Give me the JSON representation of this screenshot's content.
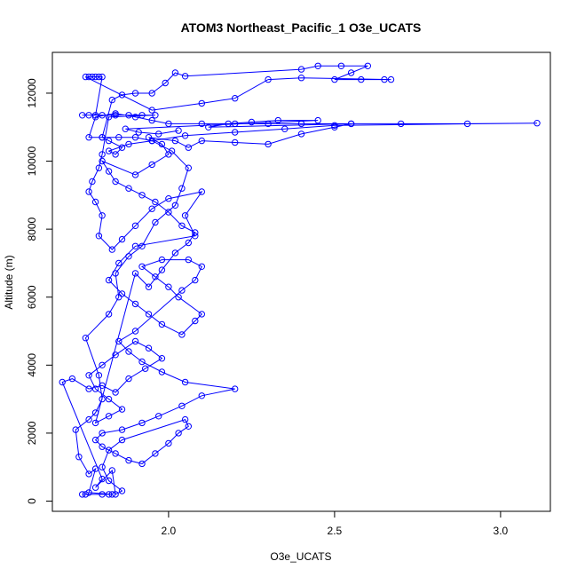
{
  "chart_data": {
    "type": "scatter",
    "title": "ATOM3 Northeast_Pacific_1 O3e_UCATS",
    "xlabel": "O3e_UCATS",
    "ylabel": "Altitude (m)",
    "xlim": [
      1.65,
      3.15
    ],
    "ylim": [
      -300,
      13200
    ],
    "x_ticks": [
      {
        "value": 2.0,
        "label": "2.0"
      },
      {
        "value": 2.5,
        "label": "2.5"
      },
      {
        "value": 3.0,
        "label": "3.0"
      }
    ],
    "y_ticks": [
      {
        "value": 0,
        "label": "0"
      },
      {
        "value": 2000,
        "label": "2000"
      },
      {
        "value": 4000,
        "label": "4000"
      },
      {
        "value": 6000,
        "label": "6000"
      },
      {
        "value": 8000,
        "label": "8000"
      },
      {
        "value": 10000,
        "label": "10000"
      },
      {
        "value": 12000,
        "label": "12000"
      }
    ],
    "grid": false,
    "series_color": "#0000ff",
    "series": [
      {
        "marker": "open-circle",
        "line": true,
        "points": [
          [
            1.74,
            200
          ],
          [
            1.75,
            200
          ],
          [
            1.8,
            200
          ],
          [
            1.82,
            200
          ],
          [
            1.83,
            200
          ],
          [
            1.76,
            250
          ],
          [
            1.78,
            950
          ],
          [
            1.76,
            800
          ],
          [
            1.73,
            1300
          ],
          [
            1.72,
            2100
          ],
          [
            1.76,
            2400
          ],
          [
            1.78,
            2600
          ],
          [
            1.8,
            3000
          ],
          [
            1.79,
            3700
          ],
          [
            1.75,
            4800
          ],
          [
            1.82,
            5500
          ],
          [
            1.85,
            6000
          ],
          [
            1.84,
            6700
          ],
          [
            1.88,
            7200
          ],
          [
            1.92,
            7500
          ],
          [
            1.96,
            8200
          ],
          [
            2.02,
            8700
          ],
          [
            2.04,
            9200
          ],
          [
            2.06,
            9800
          ],
          [
            2.01,
            10300
          ],
          [
            1.95,
            10600
          ],
          [
            1.9,
            10700
          ],
          [
            1.85,
            10700
          ],
          [
            1.8,
            10700
          ],
          [
            1.76,
            10700
          ],
          [
            1.78,
            11300
          ],
          [
            1.84,
            11400
          ],
          [
            1.9,
            11300
          ],
          [
            1.95,
            11200
          ],
          [
            2.0,
            11100
          ],
          [
            2.1,
            11100
          ],
          [
            2.2,
            11100
          ],
          [
            2.3,
            11100
          ],
          [
            2.4,
            11100
          ],
          [
            2.55,
            11100
          ],
          [
            2.7,
            11100
          ],
          [
            2.9,
            11100
          ],
          [
            3.11,
            11120
          ],
          [
            2.5,
            11050
          ],
          [
            2.35,
            10950
          ],
          [
            2.2,
            10850
          ],
          [
            2.05,
            10750
          ],
          [
            1.95,
            10600
          ],
          [
            1.88,
            10500
          ],
          [
            1.82,
            10300
          ],
          [
            1.84,
            10200
          ],
          [
            1.86,
            10400
          ],
          [
            1.82,
            10600
          ],
          [
            1.8,
            10700
          ],
          [
            1.83,
            11800
          ],
          [
            1.86,
            11950
          ],
          [
            1.9,
            12000
          ],
          [
            1.95,
            12000
          ],
          [
            1.99,
            12300
          ],
          [
            2.02,
            12600
          ],
          [
            2.05,
            12500
          ],
          [
            2.4,
            12700
          ],
          [
            2.45,
            12800
          ],
          [
            2.52,
            12800
          ],
          [
            2.6,
            12800
          ],
          [
            2.55,
            12600
          ],
          [
            2.5,
            12400
          ],
          [
            2.58,
            12400
          ],
          [
            2.65,
            12400
          ],
          [
            2.67,
            12400
          ],
          [
            2.4,
            12450
          ],
          [
            2.3,
            12400
          ],
          [
            2.2,
            11850
          ],
          [
            2.1,
            11700
          ],
          [
            1.95,
            11500
          ],
          [
            1.75,
            12480
          ],
          [
            1.76,
            12480
          ],
          [
            1.77,
            12480
          ],
          [
            1.78,
            12480
          ],
          [
            1.79,
            12480
          ],
          [
            1.8,
            12480
          ],
          [
            1.78,
            11350
          ],
          [
            1.76,
            11350
          ],
          [
            1.74,
            11350
          ],
          [
            1.8,
            11350
          ],
          [
            1.84,
            11350
          ],
          [
            1.88,
            11350
          ],
          [
            1.92,
            11350
          ],
          [
            1.96,
            11350
          ],
          [
            1.82,
            11300
          ],
          [
            1.8,
            10200
          ],
          [
            1.79,
            9800
          ],
          [
            1.77,
            9400
          ],
          [
            1.76,
            9100
          ],
          [
            1.78,
            8800
          ],
          [
            1.8,
            8400
          ],
          [
            1.79,
            7800
          ],
          [
            1.83,
            7400
          ],
          [
            1.86,
            7700
          ],
          [
            1.9,
            8100
          ],
          [
            1.95,
            8600
          ],
          [
            2.0,
            8900
          ],
          [
            2.1,
            9100
          ],
          [
            2.05,
            8400
          ],
          [
            2.08,
            7800
          ],
          [
            1.9,
            7500
          ],
          [
            1.85,
            7000
          ],
          [
            1.82,
            6500
          ],
          [
            1.86,
            6100
          ],
          [
            1.9,
            5800
          ],
          [
            1.94,
            5500
          ],
          [
            1.98,
            5200
          ],
          [
            2.04,
            4900
          ],
          [
            2.08,
            5300
          ],
          [
            2.1,
            5500
          ],
          [
            2.03,
            6000
          ],
          [
            2.0,
            6300
          ],
          [
            1.96,
            6600
          ],
          [
            1.92,
            6900
          ],
          [
            1.98,
            7100
          ],
          [
            2.06,
            7100
          ],
          [
            2.1,
            6900
          ],
          [
            2.08,
            6500
          ],
          [
            2.04,
            6200
          ],
          [
            1.9,
            5000
          ],
          [
            1.85,
            4700
          ],
          [
            1.88,
            4400
          ],
          [
            1.92,
            4100
          ],
          [
            1.98,
            3800
          ],
          [
            2.05,
            3500
          ],
          [
            2.2,
            3300
          ],
          [
            2.1,
            3100
          ],
          [
            2.04,
            2800
          ],
          [
            1.97,
            2500
          ],
          [
            1.92,
            2300
          ],
          [
            1.86,
            2100
          ],
          [
            1.8,
            2000
          ],
          [
            1.78,
            1800
          ],
          [
            1.8,
            1600
          ],
          [
            1.84,
            1400
          ],
          [
            1.88,
            1200
          ],
          [
            1.92,
            1100
          ],
          [
            1.96,
            1400
          ],
          [
            2.0,
            1700
          ],
          [
            2.03,
            2000
          ],
          [
            2.06,
            2200
          ],
          [
            2.05,
            2400
          ],
          [
            1.86,
            1800
          ],
          [
            1.82,
            1500
          ],
          [
            1.8,
            1000
          ],
          [
            1.82,
            600
          ],
          [
            1.86,
            300
          ],
          [
            1.84,
            200
          ],
          [
            1.83,
            900
          ],
          [
            1.78,
            400
          ],
          [
            1.8,
            650
          ],
          [
            1.68,
            3500
          ],
          [
            1.71,
            3600
          ],
          [
            1.76,
            3300
          ],
          [
            1.8,
            3400
          ],
          [
            1.84,
            3200
          ],
          [
            1.88,
            3600
          ],
          [
            1.93,
            3900
          ],
          [
            1.98,
            4200
          ],
          [
            1.94,
            4500
          ],
          [
            1.9,
            4700
          ],
          [
            1.84,
            4300
          ],
          [
            1.8,
            4000
          ],
          [
            1.76,
            3700
          ],
          [
            1.78,
            3300
          ],
          [
            1.82,
            3000
          ],
          [
            1.86,
            2700
          ],
          [
            1.82,
            2500
          ],
          [
            1.78,
            2300
          ],
          [
            1.9,
            6700
          ],
          [
            1.94,
            6300
          ],
          [
            1.98,
            6800
          ],
          [
            2.02,
            7300
          ],
          [
            2.06,
            7600
          ],
          [
            2.08,
            7900
          ],
          [
            2.04,
            8100
          ],
          [
            2.0,
            8500
          ],
          [
            1.96,
            8800
          ],
          [
            1.92,
            9000
          ],
          [
            1.88,
            9200
          ],
          [
            1.84,
            9400
          ],
          [
            1.82,
            9700
          ],
          [
            1.8,
            10000
          ],
          [
            1.9,
            9600
          ],
          [
            1.95,
            9900
          ],
          [
            2.0,
            10200
          ],
          [
            1.98,
            10500
          ],
          [
            1.94,
            10700
          ],
          [
            2.02,
            10600
          ],
          [
            2.06,
            10400
          ],
          [
            2.1,
            10600
          ],
          [
            2.2,
            10550
          ],
          [
            2.3,
            10500
          ],
          [
            2.4,
            10800
          ],
          [
            2.5,
            11000
          ],
          [
            2.55,
            11100
          ],
          [
            2.12,
            11000
          ],
          [
            2.18,
            11100
          ],
          [
            2.25,
            11150
          ],
          [
            2.33,
            11200
          ],
          [
            2.45,
            11200
          ],
          [
            1.87,
            10950
          ],
          [
            1.91,
            10850
          ],
          [
            1.97,
            10800
          ],
          [
            2.03,
            10900
          ]
        ]
      }
    ]
  }
}
